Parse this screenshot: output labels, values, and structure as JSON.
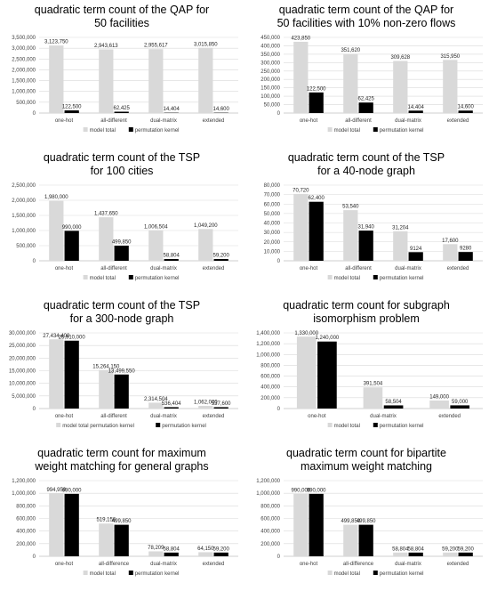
{
  "colors": {
    "model_total": "#d9d9d9",
    "permutation_kernel": "#000000",
    "gridline": "#d9d9d9",
    "axis": "#bfbfbf"
  },
  "chart_data": [
    {
      "type": "bar",
      "title": [
        "quadratic term count of the QAP for",
        "50 facilities"
      ],
      "categories": [
        "one-hot",
        "all-different",
        "dual-matrix",
        "extended"
      ],
      "ylim": [
        0,
        3500000
      ],
      "ytick_step": 500000,
      "series": [
        {
          "name": "model total",
          "values": [
            3123750,
            2943613,
            2955617,
            3015850
          ],
          "labels": [
            "3,123,750",
            "2,943,613",
            "2,955,617",
            "3,015,850"
          ]
        },
        {
          "name": "permutation kernel",
          "values": [
            122500,
            62425,
            14404,
            14600
          ],
          "labels": [
            "122,500",
            "62,425",
            "14,404",
            "14,600"
          ]
        }
      ],
      "legend": "bottom"
    },
    {
      "type": "bar",
      "title": [
        "quadratic term count of the QAP for",
        "50 facilities with 10% non-zero flows"
      ],
      "categories": [
        "one-hot",
        "all-different",
        "dual-matrix",
        "extended"
      ],
      "ylim": [
        0,
        450000
      ],
      "ytick_step": 50000,
      "series": [
        {
          "name": "model total",
          "values": [
            423850,
            351620,
            309628,
            315950
          ],
          "labels": [
            "423,850",
            "351,620",
            "309,628",
            "315,950"
          ]
        },
        {
          "name": "permutation kernel",
          "values": [
            122500,
            62425,
            14404,
            14600
          ],
          "labels": [
            "122,500",
            "62,425",
            "14,404",
            "14,600"
          ]
        }
      ],
      "legend": "bottom"
    },
    {
      "type": "bar",
      "title": [
        "quadratic term count of the TSP",
        "for 100 cities"
      ],
      "categories": [
        "one-hot",
        "all-different",
        "dual-matrix",
        "extended"
      ],
      "ylim": [
        0,
        2500000
      ],
      "ytick_step": 500000,
      "series": [
        {
          "name": "model total",
          "values": [
            1980000,
            1437650,
            1006504,
            1049200
          ],
          "labels": [
            "1,980,000",
            "1,437,650",
            "1,006,504",
            "1,049,200"
          ]
        },
        {
          "name": "permutation kernel",
          "values": [
            990000,
            499850,
            58804,
            59200
          ],
          "labels": [
            "990,000",
            "499,850",
            "58,804",
            "59,200"
          ]
        }
      ],
      "legend": "bottom"
    },
    {
      "type": "bar",
      "title": [
        "quadratic term count of the TSP",
        "for a 40-node graph"
      ],
      "categories": [
        "one-hot",
        "all-different",
        "dual-matrix",
        "extended"
      ],
      "ylim": [
        0,
        80000
      ],
      "ytick_step": 10000,
      "series": [
        {
          "name": "model total",
          "values": [
            70720,
            53540,
            31204,
            17600
          ],
          "labels": [
            "70,720",
            "53,540",
            "31,204",
            "17,600"
          ]
        },
        {
          "name": "permutation kernel",
          "values": [
            62400,
            31940,
            9124,
            9280
          ],
          "labels": [
            "62,400",
            "31,940",
            "9124",
            "9280"
          ]
        }
      ],
      "legend": "bottom"
    },
    {
      "type": "bar",
      "title": [
        "quadratic term count of the TSP",
        "for a 300-node graph"
      ],
      "categories": [
        "one-hot",
        "all-different",
        "dual-matrix",
        "extended"
      ],
      "ylim": [
        0,
        30000000
      ],
      "ytick_step": 5000000,
      "series": [
        {
          "name": "model total permutation kernel",
          "values": [
            27434400,
            15264150,
            2314504,
            1062000
          ],
          "labels": [
            "27,434,400",
            "15,264,150",
            "2,314,504",
            "1,062,000"
          ]
        },
        {
          "name": "permutation kernel",
          "values": [
            26910000,
            13499550,
            536404,
            537600
          ],
          "labels": [
            "26,910,000",
            "13,499,550",
            "536,404",
            "537,600"
          ]
        }
      ],
      "legend": "bottom"
    },
    {
      "type": "bar",
      "title": [
        "quadratic term count for subgraph",
        "isomorphism problem"
      ],
      "categories": [
        "one-hot",
        "dual-matrix",
        "extended"
      ],
      "ylim": [
        0,
        1400000
      ],
      "ytick_step": 200000,
      "series": [
        {
          "name": "model total",
          "values": [
            1330000,
            391504,
            149000
          ],
          "labels": [
            "1,330,000",
            "391,504",
            "149,000"
          ]
        },
        {
          "name": "permutation kernel",
          "values": [
            1240000,
            58504,
            59000
          ],
          "labels": [
            "1,240,000",
            "58,504",
            "59,000"
          ]
        }
      ],
      "legend": "bottom"
    },
    {
      "type": "bar",
      "title": [
        "quadratic term count for maximum",
        "weight matching for general graphs"
      ],
      "categories": [
        "one-hot",
        "all-difference",
        "dual-matrix",
        "extended"
      ],
      "ylim": [
        0,
        1200000
      ],
      "ytick_step": 200000,
      "series": [
        {
          "name": "model total",
          "values": [
            994950,
            519156,
            78209,
            64150
          ],
          "labels": [
            "994,950",
            "519,156",
            "78,209",
            "64,150"
          ]
        },
        {
          "name": "permutation kernel",
          "values": [
            990000,
            499850,
            58804,
            59200
          ],
          "labels": [
            "990,000",
            "499,850",
            "58,804",
            "59,200"
          ]
        }
      ],
      "legend": "bottom"
    },
    {
      "type": "bar",
      "title": [
        "quadratic term count for bipartite",
        "maximum weight matching"
      ],
      "categories": [
        "one-hot",
        "all-difference",
        "dual-matrix",
        "extended"
      ],
      "ylim": [
        0,
        1200000
      ],
      "ytick_step": 200000,
      "series": [
        {
          "name": "model total",
          "values": [
            990000,
            499850,
            58804,
            59200
          ],
          "labels": [
            "990,000",
            "499,850",
            "58,804",
            "59,200"
          ]
        },
        {
          "name": "permutation kernel",
          "values": [
            990000,
            499850,
            58804,
            59200
          ],
          "labels": [
            "990,000",
            "499,850",
            "58,804",
            "59,200"
          ]
        }
      ],
      "legend": "bottom"
    }
  ]
}
